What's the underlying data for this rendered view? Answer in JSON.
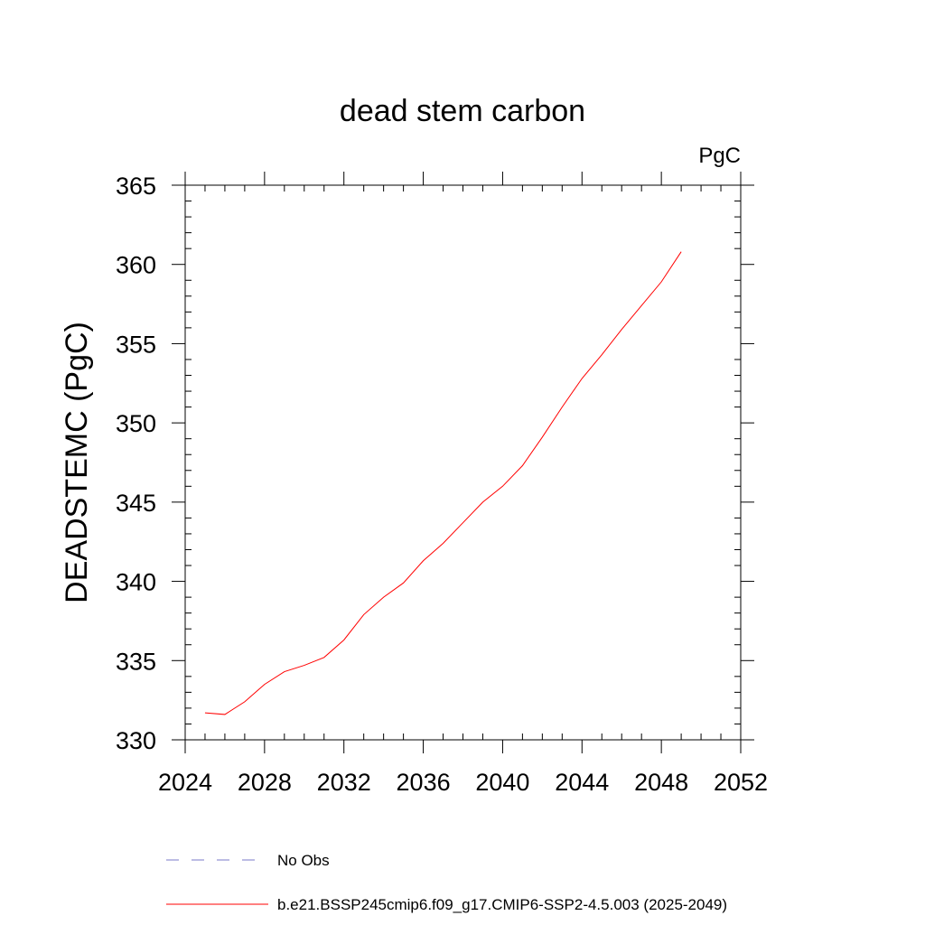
{
  "chart_data": {
    "type": "line",
    "title": "dead stem carbon",
    "units_label": "PgC",
    "ylabel": "DEADSTEMC  (PgC)",
    "xlabel": "",
    "xlim": [
      2024,
      2052
    ],
    "ylim": [
      330,
      365
    ],
    "x_ticks": [
      "2024",
      "2028",
      "2032",
      "2036",
      "2040",
      "2044",
      "2048",
      "2052"
    ],
    "y_ticks": [
      "330",
      "335",
      "340",
      "345",
      "350",
      "355",
      "360",
      "365"
    ],
    "x_tick_values": [
      2024,
      2028,
      2032,
      2036,
      2040,
      2044,
      2048,
      2052
    ],
    "y_tick_values": [
      330,
      335,
      340,
      345,
      350,
      355,
      360,
      365
    ],
    "grid": false,
    "legend_position": "bottom",
    "series": [
      {
        "name": "b.e21.BSSP245cmip6.f09_g17.CMIP6-SSP2-4.5.003 (2025-2049)",
        "color": "#ff0000",
        "style": "solid",
        "x": [
          2025,
          2026,
          2027,
          2028,
          2029,
          2030,
          2031,
          2032,
          2033,
          2034,
          2035,
          2036,
          2037,
          2038,
          2039,
          2040,
          2041,
          2042,
          2043,
          2044,
          2045,
          2046,
          2047,
          2048,
          2049
        ],
        "y": [
          331.7,
          331.6,
          332.4,
          333.5,
          334.3,
          334.7,
          335.2,
          336.3,
          337.9,
          339.0,
          339.9,
          341.3,
          342.4,
          343.7,
          345.0,
          346.0,
          347.3,
          349.1,
          351.0,
          352.8,
          354.3,
          355.9,
          357.4,
          358.9,
          360.8
        ]
      }
    ],
    "legend": [
      {
        "label": "No Obs",
        "color": "#7a7ac8",
        "style": "dashed"
      },
      {
        "label": "b.e21.BSSP245cmip6.f09_g17.CMIP6-SSP2-4.5.003 (2025-2049)",
        "color": "#ff0000",
        "style": "solid"
      }
    ]
  }
}
